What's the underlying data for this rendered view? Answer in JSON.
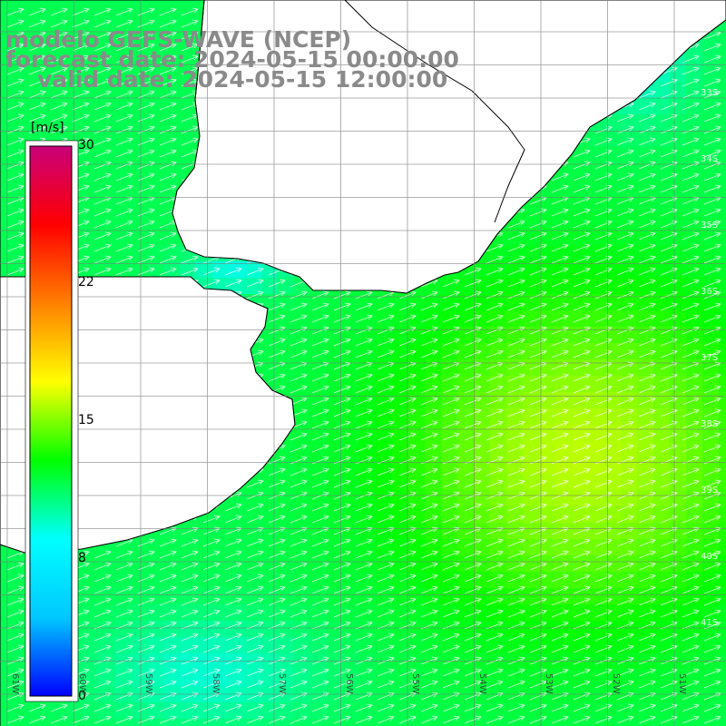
{
  "header": {
    "line1": "modelo GEFS-WAVE (NCEP)",
    "line2": "forecast date: 2024-05-15 00:00:00",
    "line3": "valid date: 2024-05-15 12:00:00"
  },
  "colorbar": {
    "unit": "[m/s]",
    "ticks": [
      "30",
      "22",
      "15",
      "8",
      "0"
    ],
    "tick_values": [
      30,
      22,
      15,
      8,
      0
    ],
    "min": 0,
    "max": 30,
    "colors": [
      "#0000ff",
      "#00c8ff",
      "#00ffff",
      "#00ff00",
      "#ffff00",
      "#ff8000",
      "#ff0000",
      "#c8007a"
    ]
  },
  "map": {
    "variable": "wind speed with wind direction arrows",
    "lat_labels": [
      "33S",
      "34S",
      "35S",
      "36S",
      "37S",
      "38S",
      "39S",
      "40S",
      "41S"
    ],
    "lon_labels": [
      "61W",
      "60W",
      "59W",
      "58W",
      "57W",
      "56W",
      "55W",
      "54W",
      "53W",
      "52W",
      "51W"
    ],
    "colors": {
      "land": "#ffffff",
      "coast": "#000000",
      "grid": "#7a7a7a",
      "arrow": "#ffffff"
    }
  }
}
